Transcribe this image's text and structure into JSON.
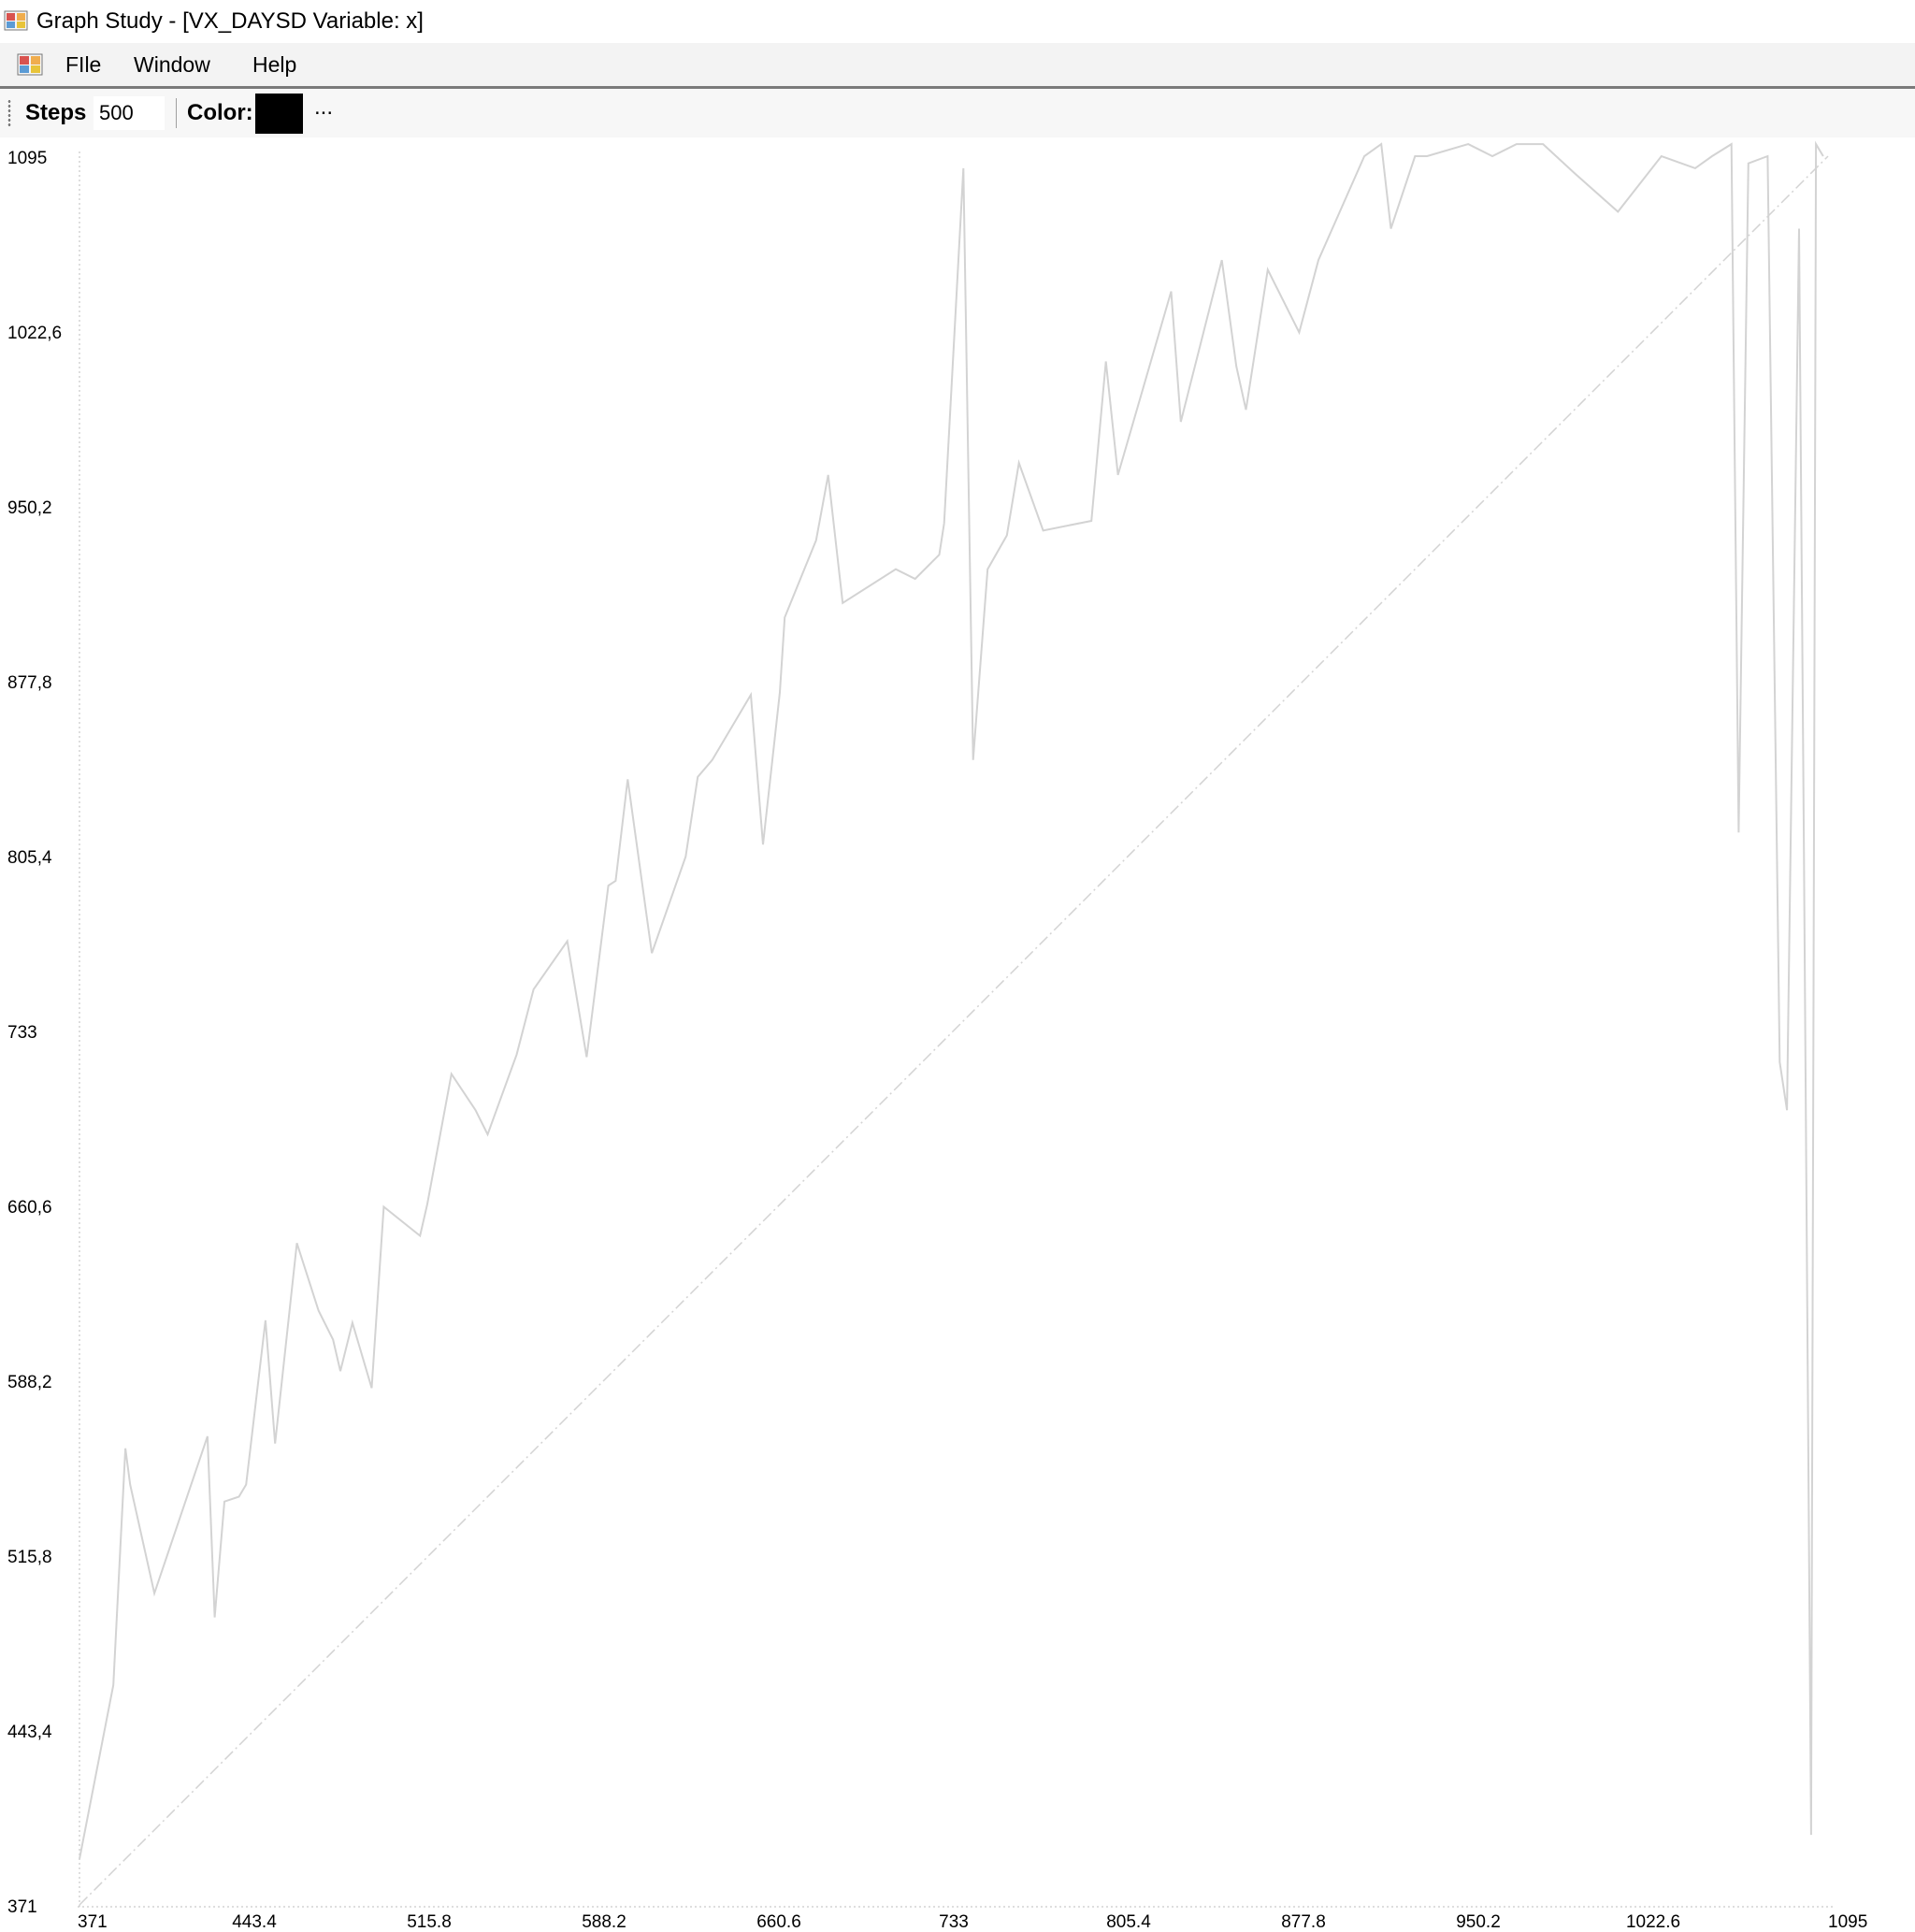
{
  "window": {
    "title": "Graph Study - [VX_DAYSD Variable: x]",
    "app_icon": "graph-study-app-icon"
  },
  "menubar": {
    "mdi_icon": "graph-study-mdi-icon",
    "items": [
      "FIle",
      "Window",
      "Help"
    ]
  },
  "toolbar": {
    "steps_label": "Steps",
    "steps_value": "500",
    "color_label": "Color:",
    "color_value": "#000000",
    "more_label": "..."
  },
  "chart_data": {
    "type": "line",
    "title": "",
    "xlabel": "",
    "ylabel": "",
    "xlim": [
      371,
      1095
    ],
    "ylim": [
      371,
      1095
    ],
    "x_ticks": [
      "371",
      "443.4",
      "515.8",
      "588.2",
      "660.6",
      "733",
      "805.4",
      "877.8",
      "950.2",
      "1022.6",
      "1095"
    ],
    "y_ticks": [
      "1095",
      "1022,6",
      "950,2",
      "877,8",
      "805,4",
      "733",
      "660,6",
      "588,2",
      "515,8",
      "443,4",
      "371"
    ],
    "series": [
      {
        "color": "#d3d3d3",
        "style": "solid",
        "x": [
          371,
          385,
          390,
          392,
          402,
          424,
          427,
          431,
          437,
          440,
          448,
          452,
          461,
          470,
          476,
          479,
          484,
          492,
          497,
          512,
          515,
          525,
          535,
          540,
          552,
          559,
          573,
          581,
          590,
          593,
          598,
          608,
          622,
          627,
          633,
          649,
          654,
          661,
          663,
          676,
          681,
          687,
          709,
          717,
          727,
          729,
          737,
          741,
          747,
          755,
          760,
          770,
          790,
          796,
          801,
          823,
          827,
          844,
          850,
          854,
          863,
          876,
          884,
          903,
          910,
          914,
          924,
          929,
          946,
          956,
          966,
          977,
          990,
          1008,
          1026,
          1040,
          1047,
          1055,
          1058,
          1062,
          1070,
          1075,
          1078,
          1083,
          1085,
          1088,
          1090,
          1093
        ],
        "y": [
          390,
          462,
          560,
          545,
          500,
          565,
          490,
          538,
          540,
          545,
          613,
          562,
          645,
          617,
          605,
          592,
          612,
          585,
          660,
          648,
          661,
          715,
          700,
          690,
          723,
          750,
          770,
          722,
          793,
          795,
          837,
          765,
          805,
          838,
          845,
          872,
          810,
          873,
          904,
          936,
          963,
          910,
          924,
          920,
          930,
          943,
          1090,
          845,
          924,
          938,
          968,
          940,
          944,
          1010,
          963,
          1039,
          985,
          1052,
          1008,
          990,
          1048,
          1022,
          1052,
          1095,
          1100,
          1065,
          1095,
          1095,
          1100,
          1095,
          1100,
          1100,
          1088,
          1072,
          1095,
          1090,
          1095,
          1100,
          815,
          1092,
          1095,
          720,
          700,
          1065,
          808,
          400,
          1100,
          1095
        ]
      },
      {
        "color": "#d3d3d3",
        "style": "dash-dot",
        "x": [
          371,
          1095
        ],
        "y": [
          371,
          1095
        ]
      }
    ],
    "grid": false,
    "legend": "none"
  }
}
